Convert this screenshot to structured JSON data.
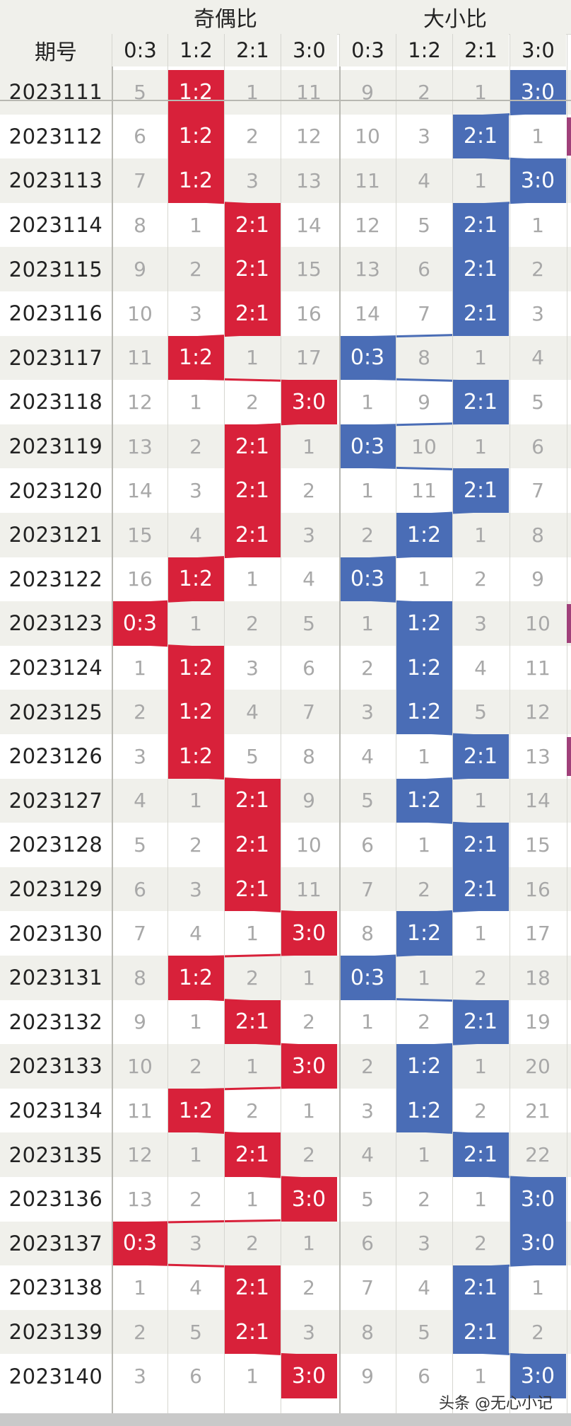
{
  "headers": {
    "issue": "期号",
    "group_odd_even": "奇偶比",
    "group_big_small": "大小比",
    "subcols": [
      "0:3",
      "1:2",
      "2:1",
      "3:0"
    ]
  },
  "watermark": "头条 @无心小记",
  "colors": {
    "odd_even_hit": "#d8213a",
    "big_small_hit": "#4a6db6",
    "header_bg": "#f0f0eb",
    "alt_row": "#f0f0eb"
  },
  "chart_data": {
    "type": "table",
    "columns": [
      "期号",
      "奇偶比 0:3",
      "奇偶比 1:2",
      "奇偶比 2:1",
      "奇偶比 3:0",
      "大小比 0:3",
      "大小比 1:2",
      "大小比 2:1",
      "大小比 3:0"
    ],
    "rows": [
      {
        "issue": "2023111",
        "values": [
          "5",
          "1:2",
          "1",
          "11",
          "9",
          "2",
          "1",
          "3:0"
        ]
      },
      {
        "issue": "2023112",
        "values": [
          "6",
          "1:2",
          "2",
          "12",
          "10",
          "3",
          "2:1",
          "1"
        ]
      },
      {
        "issue": "2023113",
        "values": [
          "7",
          "1:2",
          "3",
          "13",
          "11",
          "4",
          "1",
          "3:0"
        ]
      },
      {
        "issue": "2023114",
        "values": [
          "8",
          "1",
          "2:1",
          "14",
          "12",
          "5",
          "2:1",
          "1"
        ]
      },
      {
        "issue": "2023115",
        "values": [
          "9",
          "2",
          "2:1",
          "15",
          "13",
          "6",
          "2:1",
          "2"
        ]
      },
      {
        "issue": "2023116",
        "values": [
          "10",
          "3",
          "2:1",
          "16",
          "14",
          "7",
          "2:1",
          "3"
        ]
      },
      {
        "issue": "2023117",
        "values": [
          "11",
          "1:2",
          "1",
          "17",
          "0:3",
          "8",
          "1",
          "4"
        ]
      },
      {
        "issue": "2023118",
        "values": [
          "12",
          "1",
          "2",
          "3:0",
          "1",
          "9",
          "2:1",
          "5"
        ]
      },
      {
        "issue": "2023119",
        "values": [
          "13",
          "2",
          "2:1",
          "1",
          "0:3",
          "10",
          "1",
          "6"
        ]
      },
      {
        "issue": "2023120",
        "values": [
          "14",
          "3",
          "2:1",
          "2",
          "1",
          "11",
          "2:1",
          "7"
        ]
      },
      {
        "issue": "2023121",
        "values": [
          "15",
          "4",
          "2:1",
          "3",
          "2",
          "1:2",
          "1",
          "8"
        ]
      },
      {
        "issue": "2023122",
        "values": [
          "16",
          "1:2",
          "1",
          "4",
          "0:3",
          "1",
          "2",
          "9"
        ]
      },
      {
        "issue": "2023123",
        "values": [
          "0:3",
          "1",
          "2",
          "5",
          "1",
          "1:2",
          "3",
          "10"
        ]
      },
      {
        "issue": "2023124",
        "values": [
          "1",
          "1:2",
          "3",
          "6",
          "2",
          "1:2",
          "4",
          "11"
        ]
      },
      {
        "issue": "2023125",
        "values": [
          "2",
          "1:2",
          "4",
          "7",
          "3",
          "1:2",
          "5",
          "12"
        ]
      },
      {
        "issue": "2023126",
        "values": [
          "3",
          "1:2",
          "5",
          "8",
          "4",
          "1",
          "2:1",
          "13"
        ]
      },
      {
        "issue": "2023127",
        "values": [
          "4",
          "1",
          "2:1",
          "9",
          "5",
          "1:2",
          "1",
          "14"
        ]
      },
      {
        "issue": "2023128",
        "values": [
          "5",
          "2",
          "2:1",
          "10",
          "6",
          "1",
          "2:1",
          "15"
        ]
      },
      {
        "issue": "2023129",
        "values": [
          "6",
          "3",
          "2:1",
          "11",
          "7",
          "2",
          "2:1",
          "16"
        ]
      },
      {
        "issue": "2023130",
        "values": [
          "7",
          "4",
          "1",
          "3:0",
          "8",
          "1:2",
          "1",
          "17"
        ]
      },
      {
        "issue": "2023131",
        "values": [
          "8",
          "1:2",
          "2",
          "1",
          "0:3",
          "1",
          "2",
          "18"
        ]
      },
      {
        "issue": "2023132",
        "values": [
          "9",
          "1",
          "2:1",
          "2",
          "1",
          "2",
          "2:1",
          "19"
        ]
      },
      {
        "issue": "2023133",
        "values": [
          "10",
          "2",
          "1",
          "3:0",
          "2",
          "1:2",
          "1",
          "20"
        ]
      },
      {
        "issue": "2023134",
        "values": [
          "11",
          "1:2",
          "2",
          "1",
          "3",
          "1:2",
          "2",
          "21"
        ]
      },
      {
        "issue": "2023135",
        "values": [
          "12",
          "1",
          "2:1",
          "2",
          "4",
          "1",
          "2:1",
          "22"
        ]
      },
      {
        "issue": "2023136",
        "values": [
          "13",
          "2",
          "1",
          "3:0",
          "5",
          "2",
          "1",
          "3:0"
        ]
      },
      {
        "issue": "2023137",
        "values": [
          "0:3",
          "3",
          "2",
          "1",
          "6",
          "3",
          "2",
          "3:0"
        ]
      },
      {
        "issue": "2023138",
        "values": [
          "1",
          "4",
          "2:1",
          "2",
          "7",
          "4",
          "2:1",
          "1"
        ]
      },
      {
        "issue": "2023139",
        "values": [
          "2",
          "5",
          "2:1",
          "3",
          "8",
          "5",
          "2:1",
          "2"
        ]
      },
      {
        "issue": "2023140",
        "values": [
          "3",
          "6",
          "1",
          "3:0",
          "9",
          "6",
          "1",
          "3:0"
        ]
      }
    ]
  }
}
